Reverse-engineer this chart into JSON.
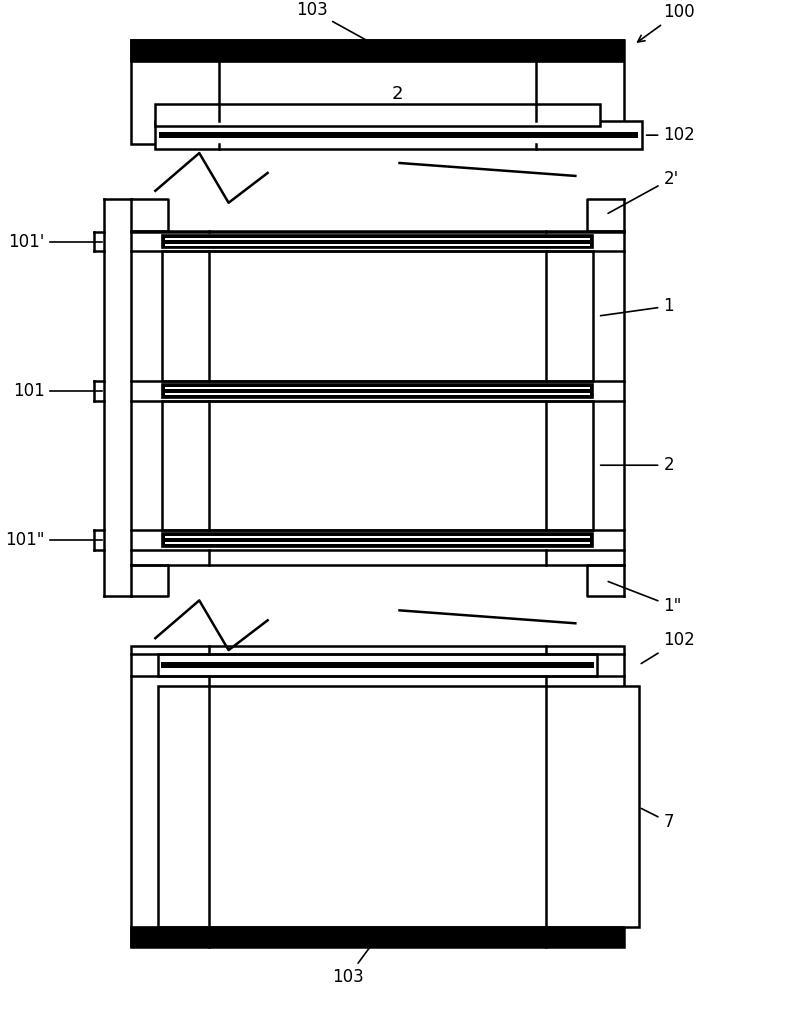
{
  "bg_color": "#ffffff",
  "lw_thin": 1.2,
  "lw_med": 1.8,
  "lw_thick": 3.5,
  "fig_width": 8.0,
  "fig_height": 10.09
}
